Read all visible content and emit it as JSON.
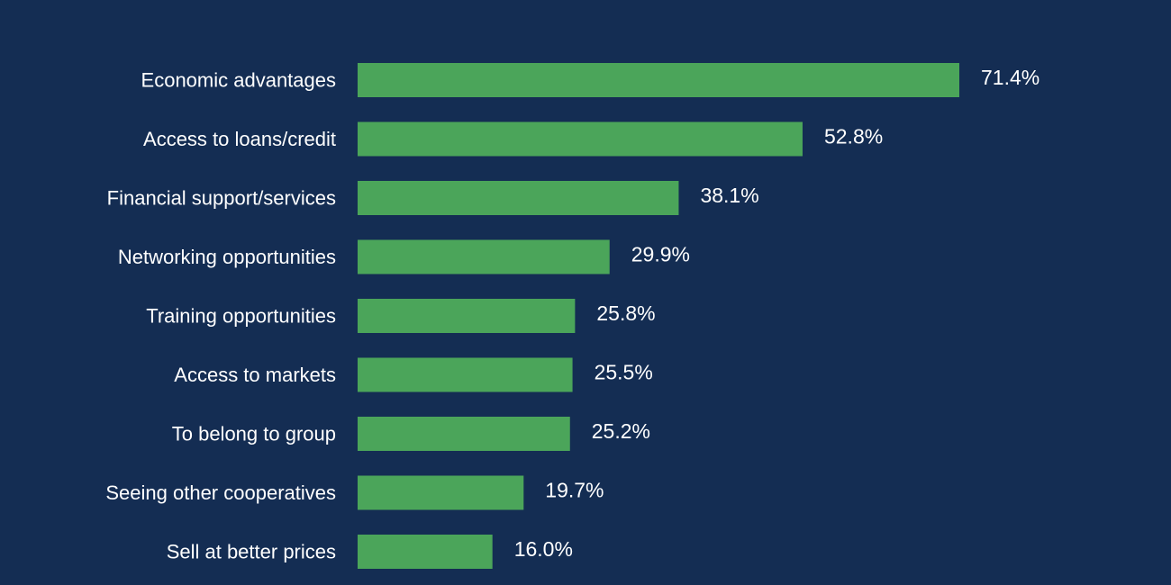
{
  "colors": {
    "background": "#142d53",
    "bar": "#4ba55a",
    "text": "#ffffff"
  },
  "chart_data": {
    "type": "bar",
    "orientation": "horizontal",
    "title": "",
    "xlabel": "",
    "ylabel": "",
    "grid": false,
    "legend": "none",
    "xlim": [
      0,
      80
    ],
    "categories": [
      "Economic advantages",
      "Access to loans/credit",
      "Financial support/services",
      "Networking opportunities",
      "Training opportunities",
      "Access to markets",
      "To belong to group",
      "Seeing other cooperatives",
      "Sell at better prices"
    ],
    "values": [
      71.4,
      52.8,
      38.1,
      29.9,
      25.8,
      25.5,
      25.2,
      19.7,
      16.0
    ],
    "value_labels": [
      "71.4%",
      "52.8%",
      "38.1%",
      "29.9%",
      "25.8%",
      "25.5%",
      "25.2%",
      "19.7%",
      "16.0%"
    ]
  }
}
